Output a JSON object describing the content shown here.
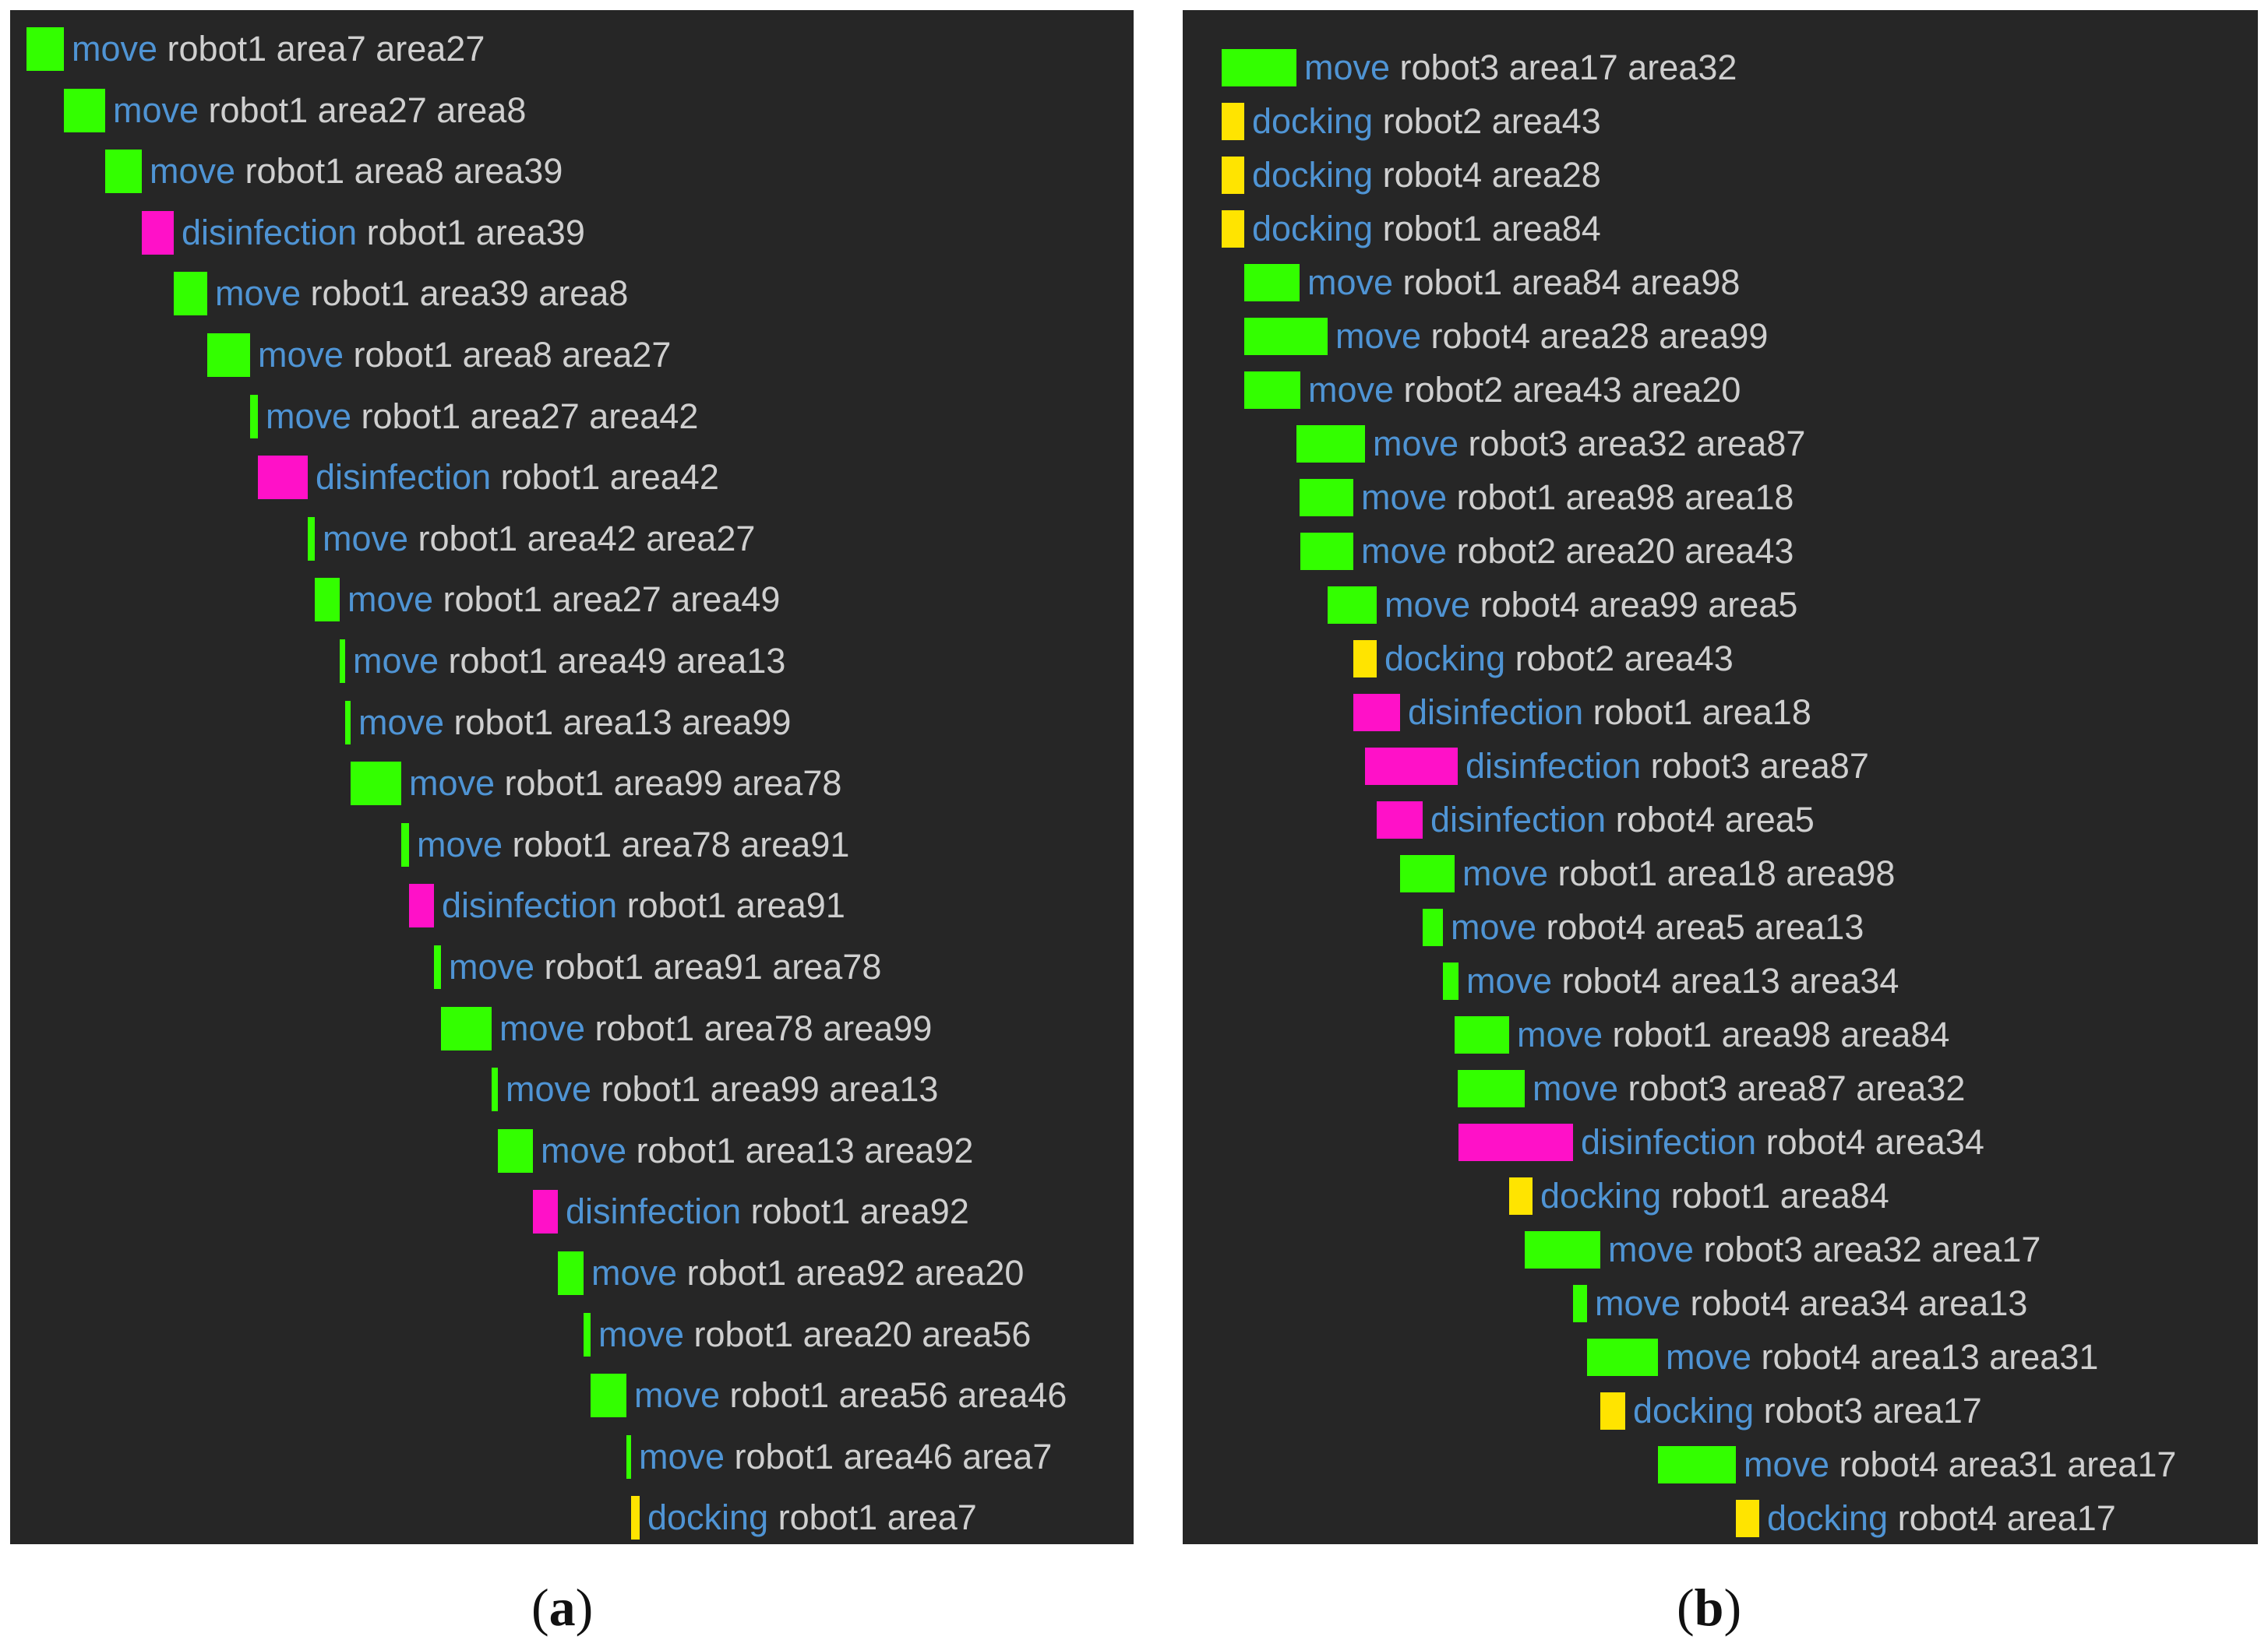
{
  "colors": {
    "move": "#33ff00",
    "disinfection": "#ff11c8",
    "docking": "#ffe400",
    "action_text": "#4f94d4",
    "args_text": "#cfcfcf",
    "background": "#262626"
  },
  "chart_data": [
    {
      "type": "gantt",
      "caption": {
        "open": "(",
        "letter": "a",
        "close": ")"
      },
      "tasks": [
        {
          "action": "move",
          "args": "robot1 area7 area27",
          "start": 0,
          "end": 48
        },
        {
          "action": "move",
          "args": "robot1 area27 area8",
          "start": 48,
          "end": 101
        },
        {
          "action": "move",
          "args": "robot1 area8 area39",
          "start": 101,
          "end": 148
        },
        {
          "action": "disinfection",
          "args": "robot1 area39",
          "start": 148,
          "end": 189
        },
        {
          "action": "move",
          "args": "robot1 area39 area8",
          "start": 189,
          "end": 232
        },
        {
          "action": "move",
          "args": "robot1 area8 area27",
          "start": 232,
          "end": 287
        },
        {
          "action": "move",
          "args": "robot1 area27 area42",
          "start": 287,
          "end": 297
        },
        {
          "action": "disinfection",
          "args": "robot1 area42",
          "start": 297,
          "end": 361
        },
        {
          "action": "move",
          "args": "robot1 area42 area27",
          "start": 361,
          "end": 370
        },
        {
          "action": "move",
          "args": "robot1 area27 area49",
          "start": 370,
          "end": 402
        },
        {
          "action": "move",
          "args": "robot1 area49 area13",
          "start": 402,
          "end": 409
        },
        {
          "action": "move",
          "args": "robot1 area13 area99",
          "start": 409,
          "end": 416
        },
        {
          "action": "move",
          "args": "robot1 area99 area78",
          "start": 416,
          "end": 481
        },
        {
          "action": "move",
          "args": "robot1 area78 area91",
          "start": 481,
          "end": 491
        },
        {
          "action": "disinfection",
          "args": "robot1 area91",
          "start": 491,
          "end": 523
        },
        {
          "action": "move",
          "args": "robot1 area91 area78",
          "start": 523,
          "end": 532
        },
        {
          "action": "move",
          "args": "robot1 area78 area99",
          "start": 532,
          "end": 597
        },
        {
          "action": "move",
          "args": "robot1 area99 area13",
          "start": 597,
          "end": 605
        },
        {
          "action": "move",
          "args": "robot1 area13 area92",
          "start": 605,
          "end": 650
        },
        {
          "action": "disinfection",
          "args": "robot1 area92",
          "start": 650,
          "end": 682
        },
        {
          "action": "move",
          "args": "robot1 area92 area20",
          "start": 682,
          "end": 715
        },
        {
          "action": "move",
          "args": "robot1 area20 area56",
          "start": 715,
          "end": 724
        },
        {
          "action": "move",
          "args": "robot1 area56 area46",
          "start": 724,
          "end": 770
        },
        {
          "action": "move",
          "args": "robot1 area46 area7",
          "start": 770,
          "end": 776
        },
        {
          "action": "docking",
          "args": "robot1 area7",
          "start": 776,
          "end": 787
        }
      ]
    },
    {
      "type": "gantt",
      "caption": {
        "open": "(",
        "letter": "b",
        "close": ")"
      },
      "tasks": [
        {
          "action": "move",
          "args": "robot3 area17 area32",
          "start": 0,
          "end": 96
        },
        {
          "action": "docking",
          "args": "robot2 area43",
          "start": 0,
          "end": 29
        },
        {
          "action": "docking",
          "args": "robot4 area28",
          "start": 0,
          "end": 29
        },
        {
          "action": "docking",
          "args": "robot1 area84",
          "start": 0,
          "end": 29
        },
        {
          "action": "move",
          "args": "robot1 area84 area98",
          "start": 29,
          "end": 100
        },
        {
          "action": "move",
          "args": "robot4 area28 area99",
          "start": 29,
          "end": 136
        },
        {
          "action": "move",
          "args": "robot2 area43 area20",
          "start": 29,
          "end": 101
        },
        {
          "action": "move",
          "args": "robot3 area32 area87",
          "start": 96,
          "end": 184
        },
        {
          "action": "move",
          "args": "robot1 area98 area18",
          "start": 100,
          "end": 169
        },
        {
          "action": "move",
          "args": "robot2 area20 area43",
          "start": 101,
          "end": 169
        },
        {
          "action": "move",
          "args": "robot4 area99 area5",
          "start": 136,
          "end": 199
        },
        {
          "action": "docking",
          "args": "robot2 area43",
          "start": 169,
          "end": 199
        },
        {
          "action": "disinfection",
          "args": "robot1 area18",
          "start": 169,
          "end": 229
        },
        {
          "action": "disinfection",
          "args": "robot3 area87",
          "start": 184,
          "end": 303
        },
        {
          "action": "disinfection",
          "args": "robot4 area5",
          "start": 199,
          "end": 258
        },
        {
          "action": "move",
          "args": "robot1 area18 area98",
          "start": 229,
          "end": 299
        },
        {
          "action": "move",
          "args": "robot4 area5 area13",
          "start": 258,
          "end": 284
        },
        {
          "action": "move",
          "args": "robot4 area13 area34",
          "start": 284,
          "end": 304
        },
        {
          "action": "move",
          "args": "robot1 area98 area84",
          "start": 299,
          "end": 369
        },
        {
          "action": "move",
          "args": "robot3 area87 area32",
          "start": 303,
          "end": 389
        },
        {
          "action": "disinfection",
          "args": "robot4 area34",
          "start": 304,
          "end": 451
        },
        {
          "action": "docking",
          "args": "robot1 area84",
          "start": 369,
          "end": 399
        },
        {
          "action": "move",
          "args": "robot3 area32 area17",
          "start": 389,
          "end": 486
        },
        {
          "action": "move",
          "args": "robot4 area34 area13",
          "start": 451,
          "end": 469
        },
        {
          "action": "move",
          "args": "robot4 area13 area31",
          "start": 469,
          "end": 560
        },
        {
          "action": "docking",
          "args": "robot3 area17",
          "start": 486,
          "end": 518
        },
        {
          "action": "move",
          "args": "robot4 area31 area17",
          "start": 560,
          "end": 660
        },
        {
          "action": "docking",
          "args": "robot4 area17",
          "start": 660,
          "end": 690
        }
      ]
    }
  ]
}
